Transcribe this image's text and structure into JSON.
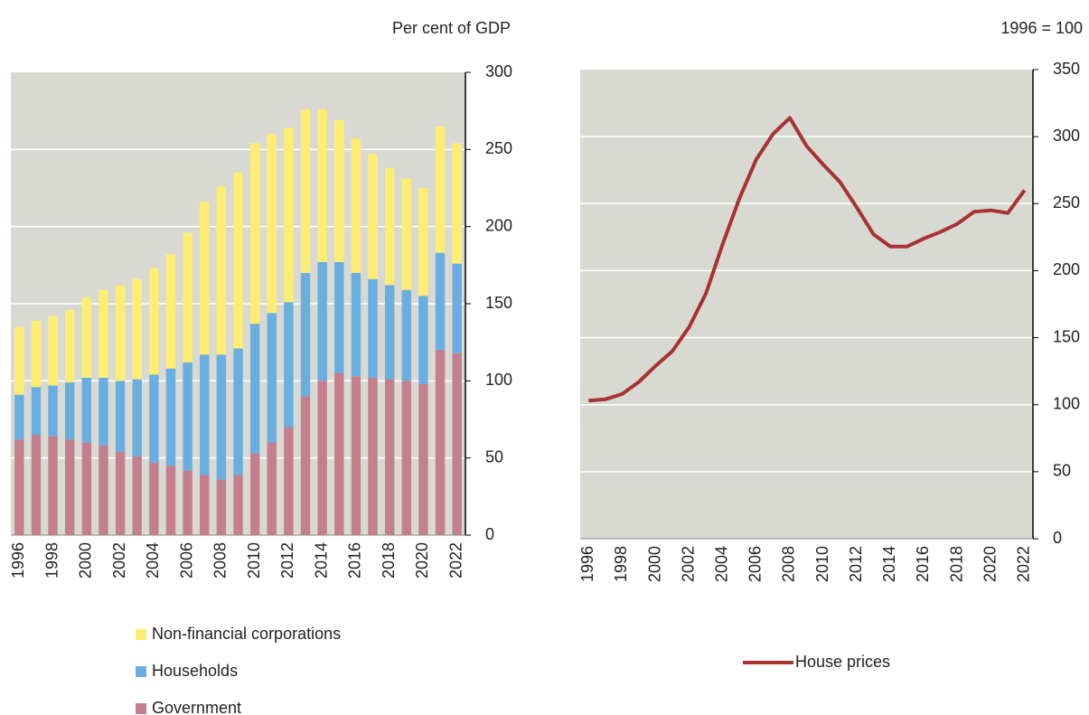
{
  "chart_data": [
    {
      "type": "bar",
      "stacked": true,
      "axis_title": "Per cent of GDP",
      "categories": [
        "1996",
        null,
        "1998",
        null,
        "2000",
        null,
        "2002",
        null,
        "2004",
        null,
        "2006",
        null,
        "2008",
        null,
        "2010",
        null,
        "2012",
        null,
        "2014",
        null,
        "2016",
        null,
        "2018",
        null,
        "2020",
        null,
        "2022"
      ],
      "series": [
        {
          "name": "Government",
          "color": "#c47f8c",
          "values": [
            62,
            65,
            64,
            62,
            60,
            58,
            54,
            51,
            47,
            45,
            42,
            39,
            36,
            39,
            53,
            60,
            70,
            90,
            100,
            105,
            103,
            102,
            101,
            100,
            98,
            120,
            118
          ]
        },
        {
          "name": "Households",
          "color": "#6aaee0",
          "values": [
            29,
            31,
            33,
            37,
            42,
            44,
            46,
            50,
            57,
            63,
            70,
            78,
            81,
            82,
            84,
            84,
            81,
            80,
            77,
            72,
            67,
            64,
            61,
            59,
            57,
            63,
            58
          ]
        },
        {
          "name": "Non-financial corporations",
          "color": "#fdee73",
          "values": [
            44,
            43,
            45,
            47,
            52,
            57,
            62,
            65,
            69,
            74,
            84,
            99,
            109,
            114,
            117,
            116,
            113,
            106,
            99,
            92,
            87,
            81,
            76,
            72,
            70,
            82,
            78
          ]
        }
      ],
      "ylim": [
        0,
        300
      ],
      "yticks": [
        0,
        50,
        100,
        150,
        200,
        250,
        300
      ],
      "grid": true,
      "background": "#d9d9d4"
    },
    {
      "type": "line",
      "axis_title": "1996 = 100",
      "categories": [
        "1996",
        null,
        "1998",
        null,
        "2000",
        null,
        "2002",
        null,
        "2004",
        null,
        "2006",
        null,
        "2008",
        null,
        "2010",
        null,
        "2012",
        null,
        "2014",
        null,
        "2016",
        null,
        "2018",
        null,
        "2020",
        null,
        "2022"
      ],
      "series": [
        {
          "name": "House prices",
          "color": "#a83232",
          "values": [
            103,
            104,
            108,
            117,
            129,
            140,
            158,
            183,
            220,
            254,
            283,
            302,
            314,
            293,
            279,
            266,
            247,
            227,
            218,
            218,
            224,
            229,
            235,
            244,
            245,
            243,
            260
          ]
        }
      ],
      "ylim": [
        0,
        350
      ],
      "yticks": [
        0,
        50,
        100,
        150,
        200,
        250,
        300,
        350
      ],
      "grid": true,
      "background": "#d9d9d4"
    }
  ]
}
